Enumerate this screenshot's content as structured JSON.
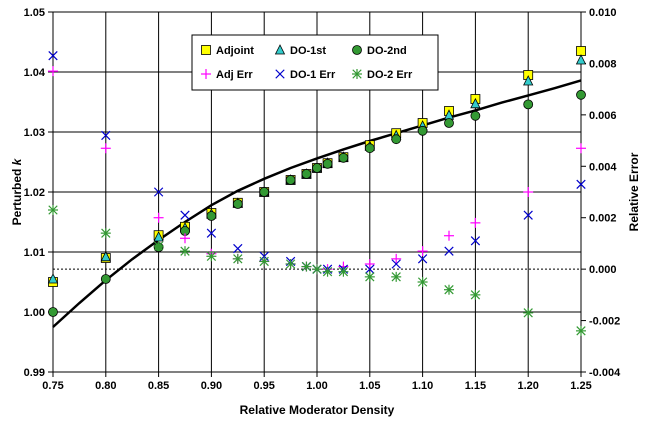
{
  "chart_data": {
    "type": "scatter",
    "xlabel": "Relative Moderator Density",
    "ylabel_left_text": "Perturbed ",
    "ylabel_left_italic": "k",
    "ylabel_right": "Relative Error",
    "xlim": [
      0.75,
      1.25
    ],
    "xticks": [
      "0.75",
      "0.80",
      "0.85",
      "0.90",
      "0.95",
      "1.00",
      "1.05",
      "1.10",
      "1.15",
      "1.20",
      "1.25"
    ],
    "ylim_left": [
      0.99,
      1.05
    ],
    "yticks_left": [
      "0.99",
      "1.00",
      "1.01",
      "1.02",
      "1.03",
      "1.04",
      "1.05"
    ],
    "ylim_right": [
      -0.004,
      0.01
    ],
    "yticks_right": [
      "-0.004",
      "-0.002",
      "0.000",
      "0.002",
      "0.004",
      "0.006",
      "0.008",
      "0.010"
    ],
    "grid": true,
    "legend_placement": "top-center",
    "x": [
      0.75,
      0.8,
      0.85,
      0.875,
      0.9,
      0.925,
      0.95,
      0.975,
      0.99,
      1.0,
      1.01,
      1.025,
      1.05,
      1.075,
      1.1,
      1.125,
      1.15,
      1.2,
      1.25
    ],
    "reference_curve": {
      "axis": "left",
      "color": "#000000",
      "x": [
        0.75,
        0.775,
        0.8,
        0.825,
        0.85,
        0.875,
        0.9,
        0.925,
        0.95,
        0.975,
        1.0,
        1.025,
        1.05,
        1.075,
        1.1,
        1.125,
        1.15,
        1.175,
        1.2,
        1.225,
        1.25
      ],
      "y": [
        0.9975,
        1.0015,
        1.0053,
        1.0088,
        1.012,
        1.015,
        1.0178,
        1.0202,
        1.0222,
        1.024,
        1.0256,
        1.0271,
        1.0285,
        1.0298,
        1.0311,
        1.0324,
        1.0336,
        1.0349,
        1.0361,
        1.0373,
        1.0386
      ]
    },
    "series": [
      {
        "name": "Adjoint",
        "axis": "left",
        "marker": "square",
        "color": "#FFFF00",
        "values": [
          1.005,
          1.009,
          1.0128,
          1.0142,
          1.0165,
          1.0182,
          1.02,
          1.022,
          1.023,
          1.024,
          1.0248,
          1.0258,
          1.0278,
          1.0298,
          1.0315,
          1.0335,
          1.0355,
          1.0395,
          1.0435
        ]
      },
      {
        "name": "DO-1st",
        "axis": "left",
        "marker": "triangle",
        "color": "#33CCCC",
        "values": [
          1.0055,
          1.0092,
          1.0125,
          1.014,
          1.0163,
          1.0181,
          1.02,
          1.022,
          1.023,
          1.024,
          1.0248,
          1.0258,
          1.0276,
          1.0294,
          1.031,
          1.0328,
          1.0347,
          1.0385,
          1.042
        ]
      },
      {
        "name": "DO-2nd",
        "axis": "left",
        "marker": "circle",
        "color": "#339933",
        "values": [
          1.0,
          1.0055,
          1.0108,
          1.0135,
          1.016,
          1.018,
          1.02,
          1.022,
          1.023,
          1.024,
          1.0247,
          1.0257,
          1.0273,
          1.0288,
          1.0302,
          1.0315,
          1.0327,
          1.0346,
          1.0362
        ]
      },
      {
        "name": "Adj Err",
        "axis": "right",
        "marker": "plus",
        "color": "#FF00FF",
        "values": [
          0.0077,
          0.0047,
          0.002,
          0.0012,
          0.0006,
          0.0004,
          0.0003,
          0.0002,
          0.0001,
          0.0,
          0.0,
          0.0001,
          0.0002,
          0.0004,
          0.0007,
          0.0013,
          0.0018,
          0.003,
          0.0047
        ]
      },
      {
        "name": "DO-1 Err",
        "axis": "right",
        "marker": "x",
        "color": "#0000CC",
        "values": [
          0.0083,
          0.0052,
          0.003,
          0.0021,
          0.0014,
          0.0008,
          0.0005,
          0.0003,
          0.0001,
          0.0,
          0.0,
          0.0,
          0.0,
          0.0002,
          0.0004,
          0.0007,
          0.0011,
          0.0021,
          0.0033
        ]
      },
      {
        "name": "DO-2 Err",
        "axis": "right",
        "marker": "asterisk",
        "color": "#339933",
        "values": [
          0.0023,
          0.0014,
          0.0009,
          0.0007,
          0.0005,
          0.0004,
          0.0003,
          0.0002,
          0.0001,
          0.0,
          -0.0001,
          -0.0001,
          -0.0003,
          -0.0003,
          -0.0005,
          -0.0008,
          -0.001,
          -0.0017,
          -0.0024
        ]
      }
    ]
  }
}
